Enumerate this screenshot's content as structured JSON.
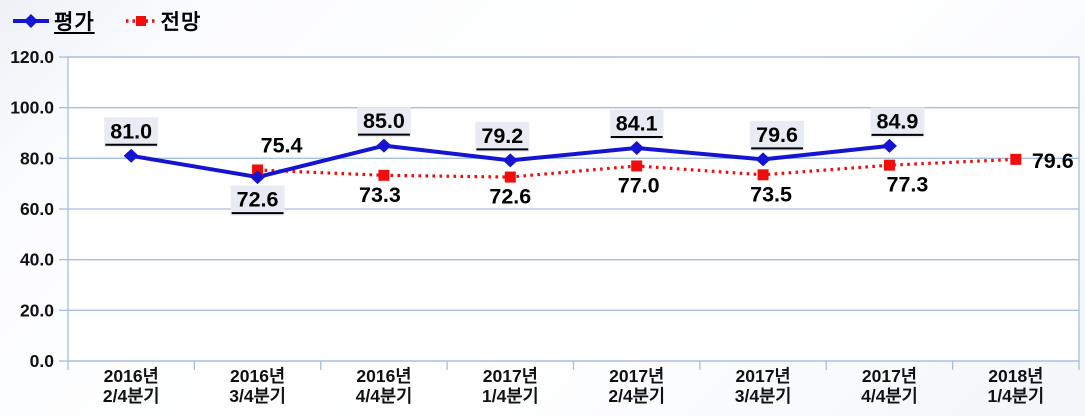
{
  "legend": [
    {
      "key": "evaluation",
      "label": "평가",
      "color": "#1414D2",
      "marker": "diamond",
      "line": "solid",
      "underline": true
    },
    {
      "key": "forecast",
      "label": "전망",
      "color": "#F20D0D",
      "marker": "square",
      "line": "dotted",
      "underline": false
    }
  ],
  "chart_data": {
    "type": "line",
    "categories": [
      "2016년 2/4분기",
      "2016년 3/4분기",
      "2016년 4/4분기",
      "2017년 1/4분기",
      "2017년 2/4분기",
      "2017년 3/4분기",
      "2017년 4/4분기",
      "2018년 1/4분기"
    ],
    "series": [
      {
        "key": "evaluation",
        "name": "평가",
        "color": "#1414D2",
        "line": "solid",
        "marker": "diamond",
        "values": [
          81.0,
          72.6,
          85.0,
          79.2,
          84.1,
          79.6,
          84.9,
          null
        ],
        "label_style": "boxed-underline",
        "label_positions": [
          "above",
          "below",
          "above",
          "above",
          "above",
          "above",
          "above",
          null
        ],
        "label_dx": [
          0,
          0,
          0,
          -8,
          0,
          14,
          8,
          0
        ]
      },
      {
        "key": "forecast",
        "name": "전망",
        "color": "#F20D0D",
        "line": "dotted",
        "marker": "square",
        "values": [
          null,
          75.4,
          73.3,
          72.6,
          77.0,
          73.5,
          77.3,
          79.6
        ],
        "label_style": "plain",
        "label_positions": [
          null,
          "above",
          "below",
          "below",
          "below",
          "below",
          "below",
          "right"
        ],
        "label_dx": [
          0,
          24,
          -4,
          0,
          2,
          8,
          18,
          0
        ]
      }
    ],
    "title": "",
    "xlabel": "",
    "ylabel": "",
    "ylim": [
      0,
      120
    ],
    "ytick_step": 20,
    "ytick_labels": [
      "0.0",
      "20.0",
      "40.0",
      "60.0",
      "80.0",
      "100.0",
      "120.0"
    ],
    "grid": true,
    "legend_position": "top-left",
    "colors": {
      "axis": "#A8BEDF",
      "label_box_bg": "#E8EBF3",
      "label_text": "#000000",
      "axis_text": "#111111"
    }
  }
}
